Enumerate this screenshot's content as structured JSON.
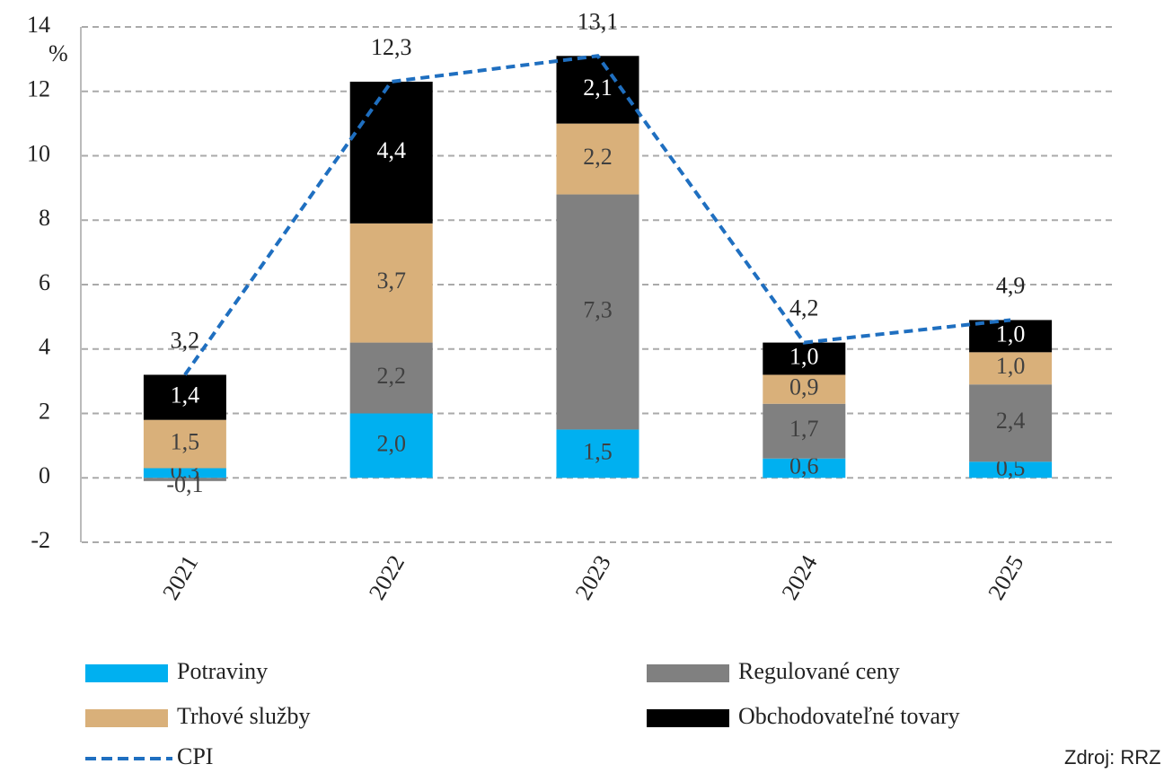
{
  "chart_data": {
    "type": "stacked_bar_line",
    "y_unit": "%",
    "source": "Zdroj: RRZ",
    "categories": [
      "2021",
      "2022",
      "2023",
      "2024",
      "2025"
    ],
    "series": [
      {
        "name": "Potraviny",
        "color": "#00b0f0",
        "values": [
          0.3,
          2.0,
          1.5,
          0.6,
          0.5
        ],
        "value_labels": [
          "0,3",
          "2,0",
          "1,5",
          "0,6",
          "0,5"
        ]
      },
      {
        "name": "Regulované ceny",
        "color": "#808080",
        "values": [
          -0.1,
          2.2,
          7.3,
          1.7,
          2.4
        ],
        "value_labels": [
          "-0,1",
          "2,2",
          "7,3",
          "1,7",
          "2,4"
        ]
      },
      {
        "name": "Trhové služby",
        "color": "#d9b07a",
        "values": [
          1.5,
          3.7,
          2.2,
          0.9,
          1.0
        ],
        "value_labels": [
          "1,5",
          "3,7",
          "2,2",
          "0,9",
          "1,0"
        ]
      },
      {
        "name": "Obchodovateľné tovary",
        "color": "#000000",
        "values": [
          1.4,
          4.4,
          2.1,
          1.0,
          1.0
        ],
        "value_labels": [
          "1,4",
          "4,4",
          "2,1",
          "1,0",
          "1,0"
        ]
      }
    ],
    "line": {
      "name": "CPI",
      "color": "#1f6fc0",
      "values": [
        3.2,
        12.3,
        13.1,
        4.2,
        4.9
      ],
      "value_labels": [
        "3,2",
        "12,3",
        "13,1",
        "4,2",
        "4,9"
      ]
    },
    "ylim": [
      -2,
      14
    ],
    "yticks": [
      -2,
      0,
      2,
      4,
      6,
      8,
      10,
      12,
      14
    ],
    "grid": true
  }
}
